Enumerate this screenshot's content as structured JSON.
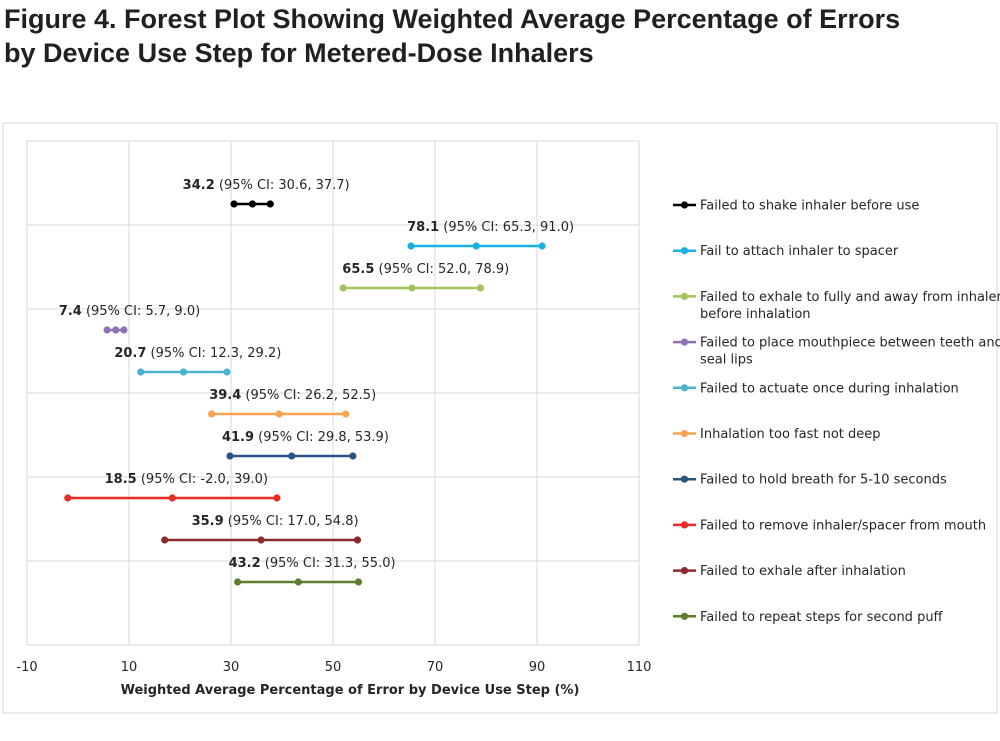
{
  "figure": {
    "title_line1": "Figure 4. Forest Plot Showing Weighted Average Percentage of Errors",
    "title_line2": "by Device Use Step for Metered-Dose Inhalers"
  },
  "chart_data": {
    "type": "scatter",
    "title": "Figure 4. Forest Plot Showing Weighted Average Percentage of Errors by Device Use Step for Metered-Dose Inhalers",
    "xlabel": "Weighted Average Percentage of Error by Device Use Step (%)",
    "ylabel": "",
    "xlim": [
      -10,
      110
    ],
    "xticks": [
      -10,
      10,
      30,
      50,
      70,
      90,
      110
    ],
    "grid": true,
    "legend_position": "right",
    "series": [
      {
        "name": "Failed to shake inhaler before use",
        "legend_lines": [
          "Failed to shake inhaler before use"
        ],
        "estimate": 34.2,
        "ci_low": 30.6,
        "ci_high": 37.7,
        "estimate_label": "34.2",
        "ci_label": "(95% CI: 30.6, 37.7)",
        "color": "#000000"
      },
      {
        "name": "Fail to attach inhaler to spacer",
        "legend_lines": [
          "Fail to attach inhaler to spacer"
        ],
        "estimate": 78.1,
        "ci_low": 65.3,
        "ci_high": 91.0,
        "estimate_label": "78.1",
        "ci_label": "(95% CI: 65.3, 91.0)",
        "color": "#1ab0e2"
      },
      {
        "name": "Failed to exhale to fully and away from inhaler before inhalation",
        "legend_lines": [
          "Failed to exhale to fully and away from inhaler",
          "before inhalation"
        ],
        "estimate": 65.5,
        "ci_low": 52.0,
        "ci_high": 78.9,
        "estimate_label": "65.5",
        "ci_label": "(95% CI: 52.0, 78.9)",
        "color": "#a3c35a"
      },
      {
        "name": "Failed to place mouthpiece between teeth and seal lips",
        "legend_lines": [
          "Failed to place mouthpiece between teeth and",
          "seal lips"
        ],
        "estimate": 7.4,
        "ci_low": 5.7,
        "ci_high": 9.0,
        "estimate_label": "7.4",
        "ci_label": "(95% CI: 5.7, 9.0)",
        "color": "#8f72b5"
      },
      {
        "name": "Failed to actuate once during inhalation",
        "legend_lines": [
          "Failed to actuate once during inhalation"
        ],
        "estimate": 20.7,
        "ci_low": 12.3,
        "ci_high": 29.2,
        "estimate_label": "20.7",
        "ci_label": "(95% CI: 12.3, 29.2)",
        "color": "#4ab3cf"
      },
      {
        "name": "Inhalation too fast not deep",
        "legend_lines": [
          "Inhalation too fast not deep"
        ],
        "estimate": 39.4,
        "ci_low": 26.2,
        "ci_high": 52.5,
        "estimate_label": "39.4",
        "ci_label": "(95% CI: 26.2, 52.5)",
        "color": "#f8a354"
      },
      {
        "name": "Failed to hold breath for 5-10 seconds",
        "legend_lines": [
          "Failed to hold breath for 5-10 seconds"
        ],
        "estimate": 41.9,
        "ci_low": 29.8,
        "ci_high": 53.9,
        "estimate_label": "41.9",
        "ci_label": "(95% CI: 29.8, 53.9)",
        "color": "#2a5481"
      },
      {
        "name": "Failed to remove inhaler/spacer from mouth",
        "legend_lines": [
          "Failed to remove inhaler/spacer from mouth"
        ],
        "estimate": 18.5,
        "ci_low": -2.0,
        "ci_high": 39.0,
        "estimate_label": "18.5",
        "ci_label": "(95% CI: -2.0, 39.0)",
        "color": "#ee2a24"
      },
      {
        "name": "Failed to exhale after inhalation",
        "legend_lines": [
          "Failed to exhale after inhalation"
        ],
        "estimate": 35.9,
        "ci_low": 17.0,
        "ci_high": 54.8,
        "estimate_label": "35.9",
        "ci_label": "(95% CI: 17.0, 54.8)",
        "color": "#8b2a2a"
      },
      {
        "name": "Failed to repeat steps for second puff",
        "legend_lines": [
          "Failed to repeat steps for second puff"
        ],
        "estimate": 43.2,
        "ci_low": 31.3,
        "ci_high": 55.0,
        "estimate_label": "43.2",
        "ci_label": "(95% CI: 31.3, 55.0)",
        "color": "#5e7d30"
      }
    ]
  }
}
